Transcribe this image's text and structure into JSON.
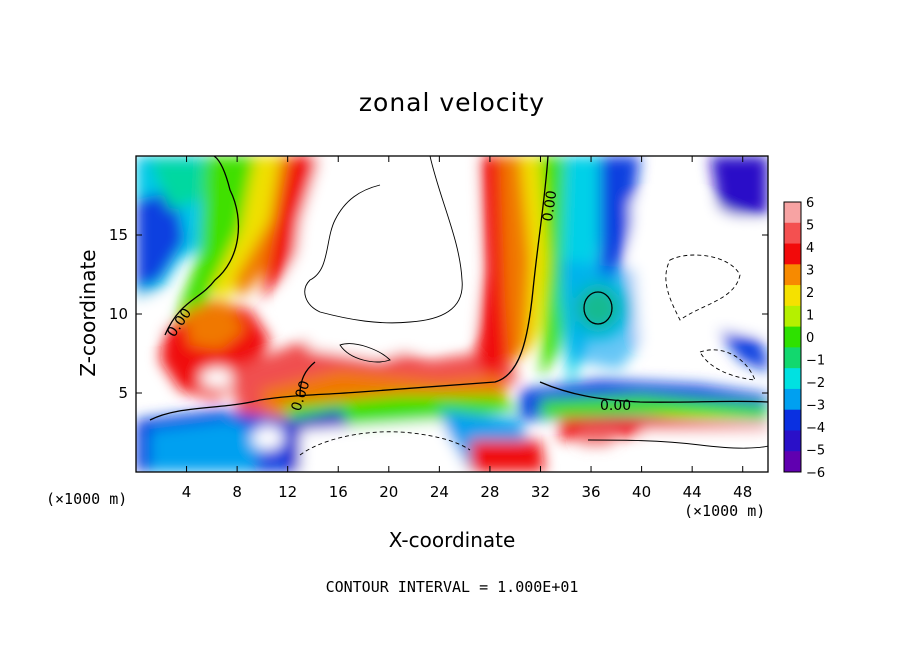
{
  "chart_data": {
    "type": "heatmap",
    "title": "zonal velocity",
    "xlabel": "X-coordinate",
    "ylabel": "Z-coordinate",
    "x_unit_note_left": "(×1000 m)",
    "x_unit_note_right": "(×1000 m)",
    "footer": "CONTOUR INTERVAL = 1.000E+01",
    "xlim": [
      0,
      50
    ],
    "ylim": [
      0,
      20
    ],
    "xticks": [
      4,
      8,
      12,
      16,
      20,
      24,
      28,
      32,
      36,
      40,
      44,
      48
    ],
    "yticks": [
      5,
      10,
      15
    ],
    "colorbar": {
      "levels": [
        6,
        5,
        4,
        3,
        2,
        1,
        0,
        -1,
        -2,
        -3,
        -4,
        -5,
        -6
      ],
      "colors": [
        "#f7a3a3",
        "#f45050",
        "#f20a0a",
        "#f78a00",
        "#f5e100",
        "#b5f000",
        "#2ee100",
        "#12d86e",
        "#00e1e1",
        "#00a0f0",
        "#0a30e1",
        "#2a10c8",
        "#6000b0"
      ]
    },
    "contour_labels": [
      "0.00",
      "0.00",
      "0.00",
      "0.00"
    ]
  }
}
